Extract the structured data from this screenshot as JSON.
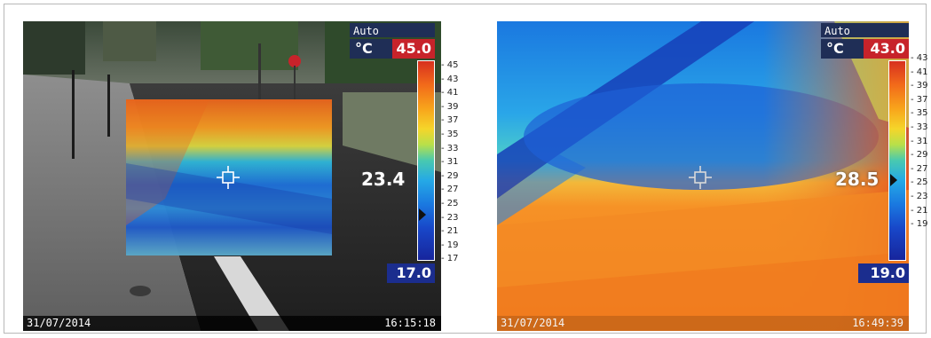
{
  "panels": [
    {
      "mode": "Auto",
      "unit": "°C",
      "max": "45.0",
      "min": "17.0",
      "spot": "23.4",
      "scale": [
        "- 45",
        "- 43",
        "- 41",
        "- 39",
        "- 37",
        "- 35",
        "- 33",
        "- 31",
        "- 29",
        "- 27",
        "- 25",
        "- 23",
        "- 21",
        "- 19",
        "- 17"
      ],
      "date": "31/07/2014",
      "time": "16:15:18"
    },
    {
      "mode": "Auto",
      "unit": "°C",
      "max": "43.0",
      "min": "19.0",
      "spot": "28.5",
      "scale": [
        "- 43",
        "- 41",
        "- 39",
        "- 37",
        "- 35",
        "- 33",
        "- 31",
        "- 29",
        "- 27",
        "- 25",
        "- 23",
        "- 21",
        "- 19"
      ],
      "date": "31/07/2014",
      "time": "16:49:39"
    }
  ],
  "colors": {
    "label_bg": "#1f2e56",
    "max_bg": "#c7232a",
    "min_bg": "#1b2d8e"
  }
}
